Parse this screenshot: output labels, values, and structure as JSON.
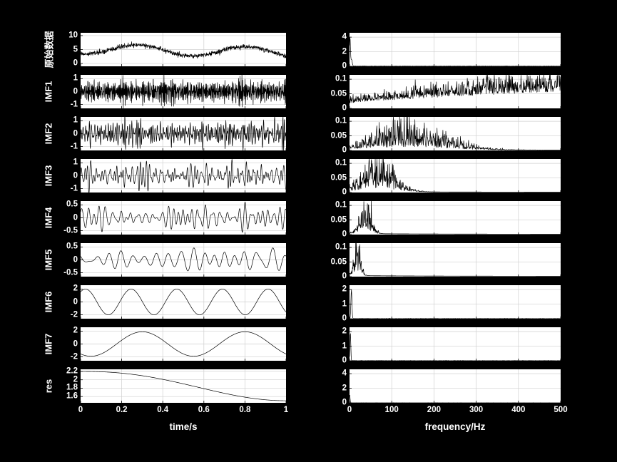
{
  "figure": {
    "bg_color": "#000000",
    "plot_bg_color": "#ffffff",
    "trace_color": "#000000",
    "grid_color": "#cfcfcf",
    "text_color": "#ffffff"
  },
  "chart_data": {
    "type": "line",
    "title": "",
    "layout": "9 rows x 2 columns; left column time-domain signals, right column amplitude spectra",
    "grid": true,
    "columns": [
      {
        "xlabel": "time/s",
        "xlim": [
          0,
          1
        ],
        "xticks": [
          0,
          0.2,
          0.4,
          0.6,
          0.8,
          1
        ]
      },
      {
        "xlabel": "frequency/Hz",
        "xlim": [
          0,
          500
        ],
        "xticks": [
          0,
          100,
          200,
          300,
          400,
          500
        ]
      }
    ],
    "rows": [
      {
        "label": "原始数据",
        "time": {
          "ylim": [
            -1,
            11
          ],
          "yticks": [
            0,
            5,
            10
          ],
          "signal": {
            "kind": "trend_sine_noise",
            "base": 5.2,
            "slope": -1.2,
            "amp": 1.8,
            "freq": 1.9,
            "phase": -1.75,
            "noise": 0.4,
            "seed": 101
          }
        },
        "freq": {
          "ylim": [
            0,
            4.6
          ],
          "yticks": [
            0,
            2,
            4
          ],
          "spectrum": {
            "kind": "peaks",
            "peaks": [
              {
                "f": 1,
                "a": 4,
                "w": 1.2
              },
              {
                "f": 5,
                "a": 0.9,
                "w": 1.5
              }
            ],
            "noise": 0.02,
            "seed": 201
          }
        }
      },
      {
        "label": "IMF1",
        "time": {
          "ylim": [
            -1.3,
            1.3
          ],
          "yticks": [
            -1,
            0,
            1
          ],
          "signal": {
            "kind": "band_noise",
            "f1": 90,
            "f2": 330,
            "amp": 1.05,
            "seed": 102
          }
        },
        "freq": {
          "ylim": [
            0,
            0.115
          ],
          "yticks": [
            0,
            0.05,
            0.1
          ],
          "spectrum": {
            "kind": "broadband",
            "base": 0.018,
            "rise": 0.04,
            "seed": 202
          }
        }
      },
      {
        "label": "IMF2",
        "time": {
          "ylim": [
            -1.3,
            1.3
          ],
          "yticks": [
            -1,
            0,
            1
          ],
          "signal": {
            "kind": "band_noise",
            "f1": 55,
            "f2": 200,
            "amp": 1.1,
            "seed": 103
          }
        },
        "freq": {
          "ylim": [
            0,
            0.115
          ],
          "yticks": [
            0,
            0.05,
            0.1
          ],
          "spectrum": {
            "kind": "hump",
            "center": 140,
            "width": 85,
            "amp": 0.042,
            "seed": 203
          }
        }
      },
      {
        "label": "IMF3",
        "time": {
          "ylim": [
            -1.3,
            1.3
          ],
          "yticks": [
            -1,
            0,
            1
          ],
          "signal": {
            "kind": "band_noise",
            "f1": 28,
            "f2": 100,
            "amp": 1.05,
            "seed": 104
          }
        },
        "freq": {
          "ylim": [
            0,
            0.115
          ],
          "yticks": [
            0,
            0.05,
            0.1
          ],
          "spectrum": {
            "kind": "hump",
            "center": 70,
            "width": 38,
            "amp": 0.05,
            "seed": 204
          }
        }
      },
      {
        "label": "IMF4",
        "time": {
          "ylim": [
            -0.65,
            0.65
          ],
          "yticks": [
            -0.5,
            0,
            0.5
          ],
          "signal": {
            "kind": "band_noise",
            "f1": 24,
            "f2": 48,
            "amp": 0.52,
            "seed": 105
          }
        },
        "freq": {
          "ylim": [
            0,
            0.115
          ],
          "yticks": [
            0,
            0.05,
            0.1
          ],
          "spectrum": {
            "kind": "hump",
            "center": 38,
            "width": 13,
            "amp": 0.055,
            "seed": 205
          }
        }
      },
      {
        "label": "IMF5",
        "time": {
          "ylim": [
            -0.65,
            0.65
          ],
          "yticks": [
            -0.5,
            0,
            0.5
          ],
          "signal": {
            "kind": "band_noise",
            "f1": 10,
            "f2": 22,
            "amp": 0.5,
            "seed": 106
          }
        },
        "freq": {
          "ylim": [
            0,
            0.115
          ],
          "yticks": [
            0,
            0.05,
            0.1
          ],
          "spectrum": {
            "kind": "hump",
            "center": 17,
            "width": 8,
            "amp": 0.06,
            "seed": 206
          }
        }
      },
      {
        "label": "IMF6",
        "time": {
          "ylim": [
            -2.6,
            2.6
          ],
          "yticks": [
            -2,
            0,
            2
          ],
          "signal": {
            "kind": "sine",
            "amp": 2,
            "freq": 4.5,
            "phase": 0.9
          }
        },
        "freq": {
          "ylim": [
            0,
            2.3
          ],
          "yticks": [
            0,
            1,
            2
          ],
          "spectrum": {
            "kind": "peaks",
            "peaks": [
              {
                "f": 4.5,
                "a": 2,
                "w": 1.2
              }
            ],
            "noise": 0.008,
            "seed": 207
          }
        }
      },
      {
        "label": "IMF7",
        "time": {
          "ylim": [
            -2.6,
            2.6
          ],
          "yticks": [
            -2,
            0,
            2
          ],
          "signal": {
            "kind": "sine",
            "amp": 1.9,
            "freq": 2,
            "phase": -2.2
          }
        },
        "freq": {
          "ylim": [
            0,
            2.3
          ],
          "yticks": [
            0,
            1,
            2
          ],
          "spectrum": {
            "kind": "peaks",
            "peaks": [
              {
                "f": 2,
                "a": 1.95,
                "w": 1
              }
            ],
            "noise": 0.008,
            "seed": 208
          }
        }
      },
      {
        "label": "res",
        "time": {
          "ylim": [
            1.45,
            2.25
          ],
          "yticks": [
            1.6,
            1.8,
            2,
            2.2
          ],
          "signal": {
            "kind": "res_decay",
            "start": 2.2,
            "end": 1.5,
            "shape": 1.15
          }
        },
        "freq": {
          "ylim": [
            0,
            4.6
          ],
          "yticks": [
            0,
            2,
            4
          ],
          "spectrum": {
            "kind": "peaks",
            "peaks": [
              {
                "f": 0.5,
                "a": 1.1,
                "w": 0.8
              }
            ],
            "noise": 0.005,
            "seed": 209
          }
        }
      }
    ]
  }
}
